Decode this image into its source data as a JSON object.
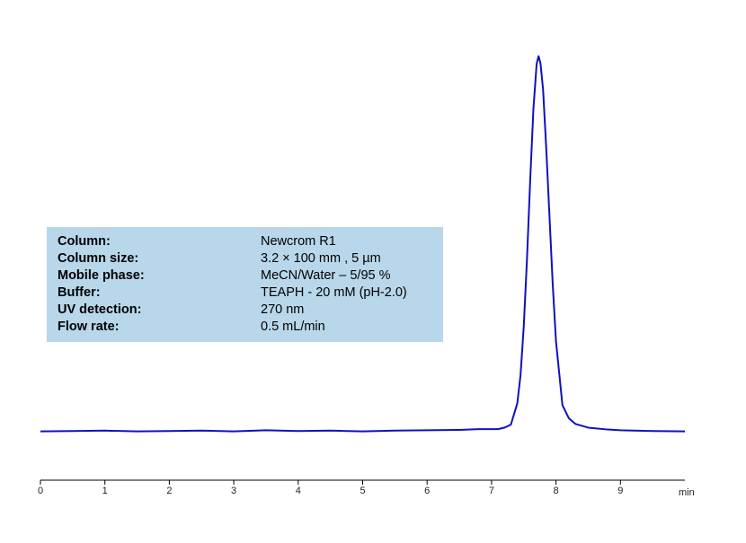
{
  "chart_data": {
    "type": "line",
    "x_label": "min",
    "xlim": [
      0,
      10
    ],
    "xticks": [
      0,
      1,
      2,
      3,
      4,
      5,
      6,
      7,
      8,
      9
    ],
    "ylim": [
      -13,
      103
    ],
    "x": [
      0,
      0.5,
      1,
      1.5,
      2,
      2.5,
      3,
      3.5,
      4,
      4.5,
      5,
      5.5,
      6,
      6.5,
      6.8,
      7.0,
      7.1,
      7.2,
      7.3,
      7.4,
      7.45,
      7.5,
      7.55,
      7.6,
      7.65,
      7.7,
      7.73,
      7.76,
      7.8,
      7.85,
      7.9,
      7.95,
      8.0,
      8.1,
      8.2,
      8.3,
      8.5,
      8.8,
      9.0,
      9.5,
      10
    ],
    "series": [
      {
        "color": "#1010c0",
        "values": [
          0,
          0.1,
          0.2,
          0,
          0.1,
          0.2,
          0,
          0.3,
          0.1,
          0.2,
          0,
          0.2,
          0.3,
          0.4,
          0.6,
          0.6,
          0.6,
          1,
          1.8,
          7.5,
          15,
          28,
          46,
          67,
          86,
          98,
          100,
          98,
          91,
          75,
          57,
          39,
          24,
          7,
          3.5,
          2,
          1,
          0.5,
          0.3,
          0.1,
          0
        ]
      }
    ],
    "info": [
      {
        "label": "Column:",
        "value": "Newcrom R1"
      },
      {
        "label": "Column size:",
        "value": "3.2 × 100 mm , 5 µm"
      },
      {
        "label": "Mobile phase:",
        "value": "MeCN/Water –  5/95 %"
      },
      {
        "label": "Buffer:",
        "value": "TEAPH - 20 mM (pH-2.0)"
      },
      {
        "label": "UV detection:",
        "value": "270 nm"
      },
      {
        "label": "Flow rate:",
        "value": "0.5 mL/min"
      }
    ]
  }
}
